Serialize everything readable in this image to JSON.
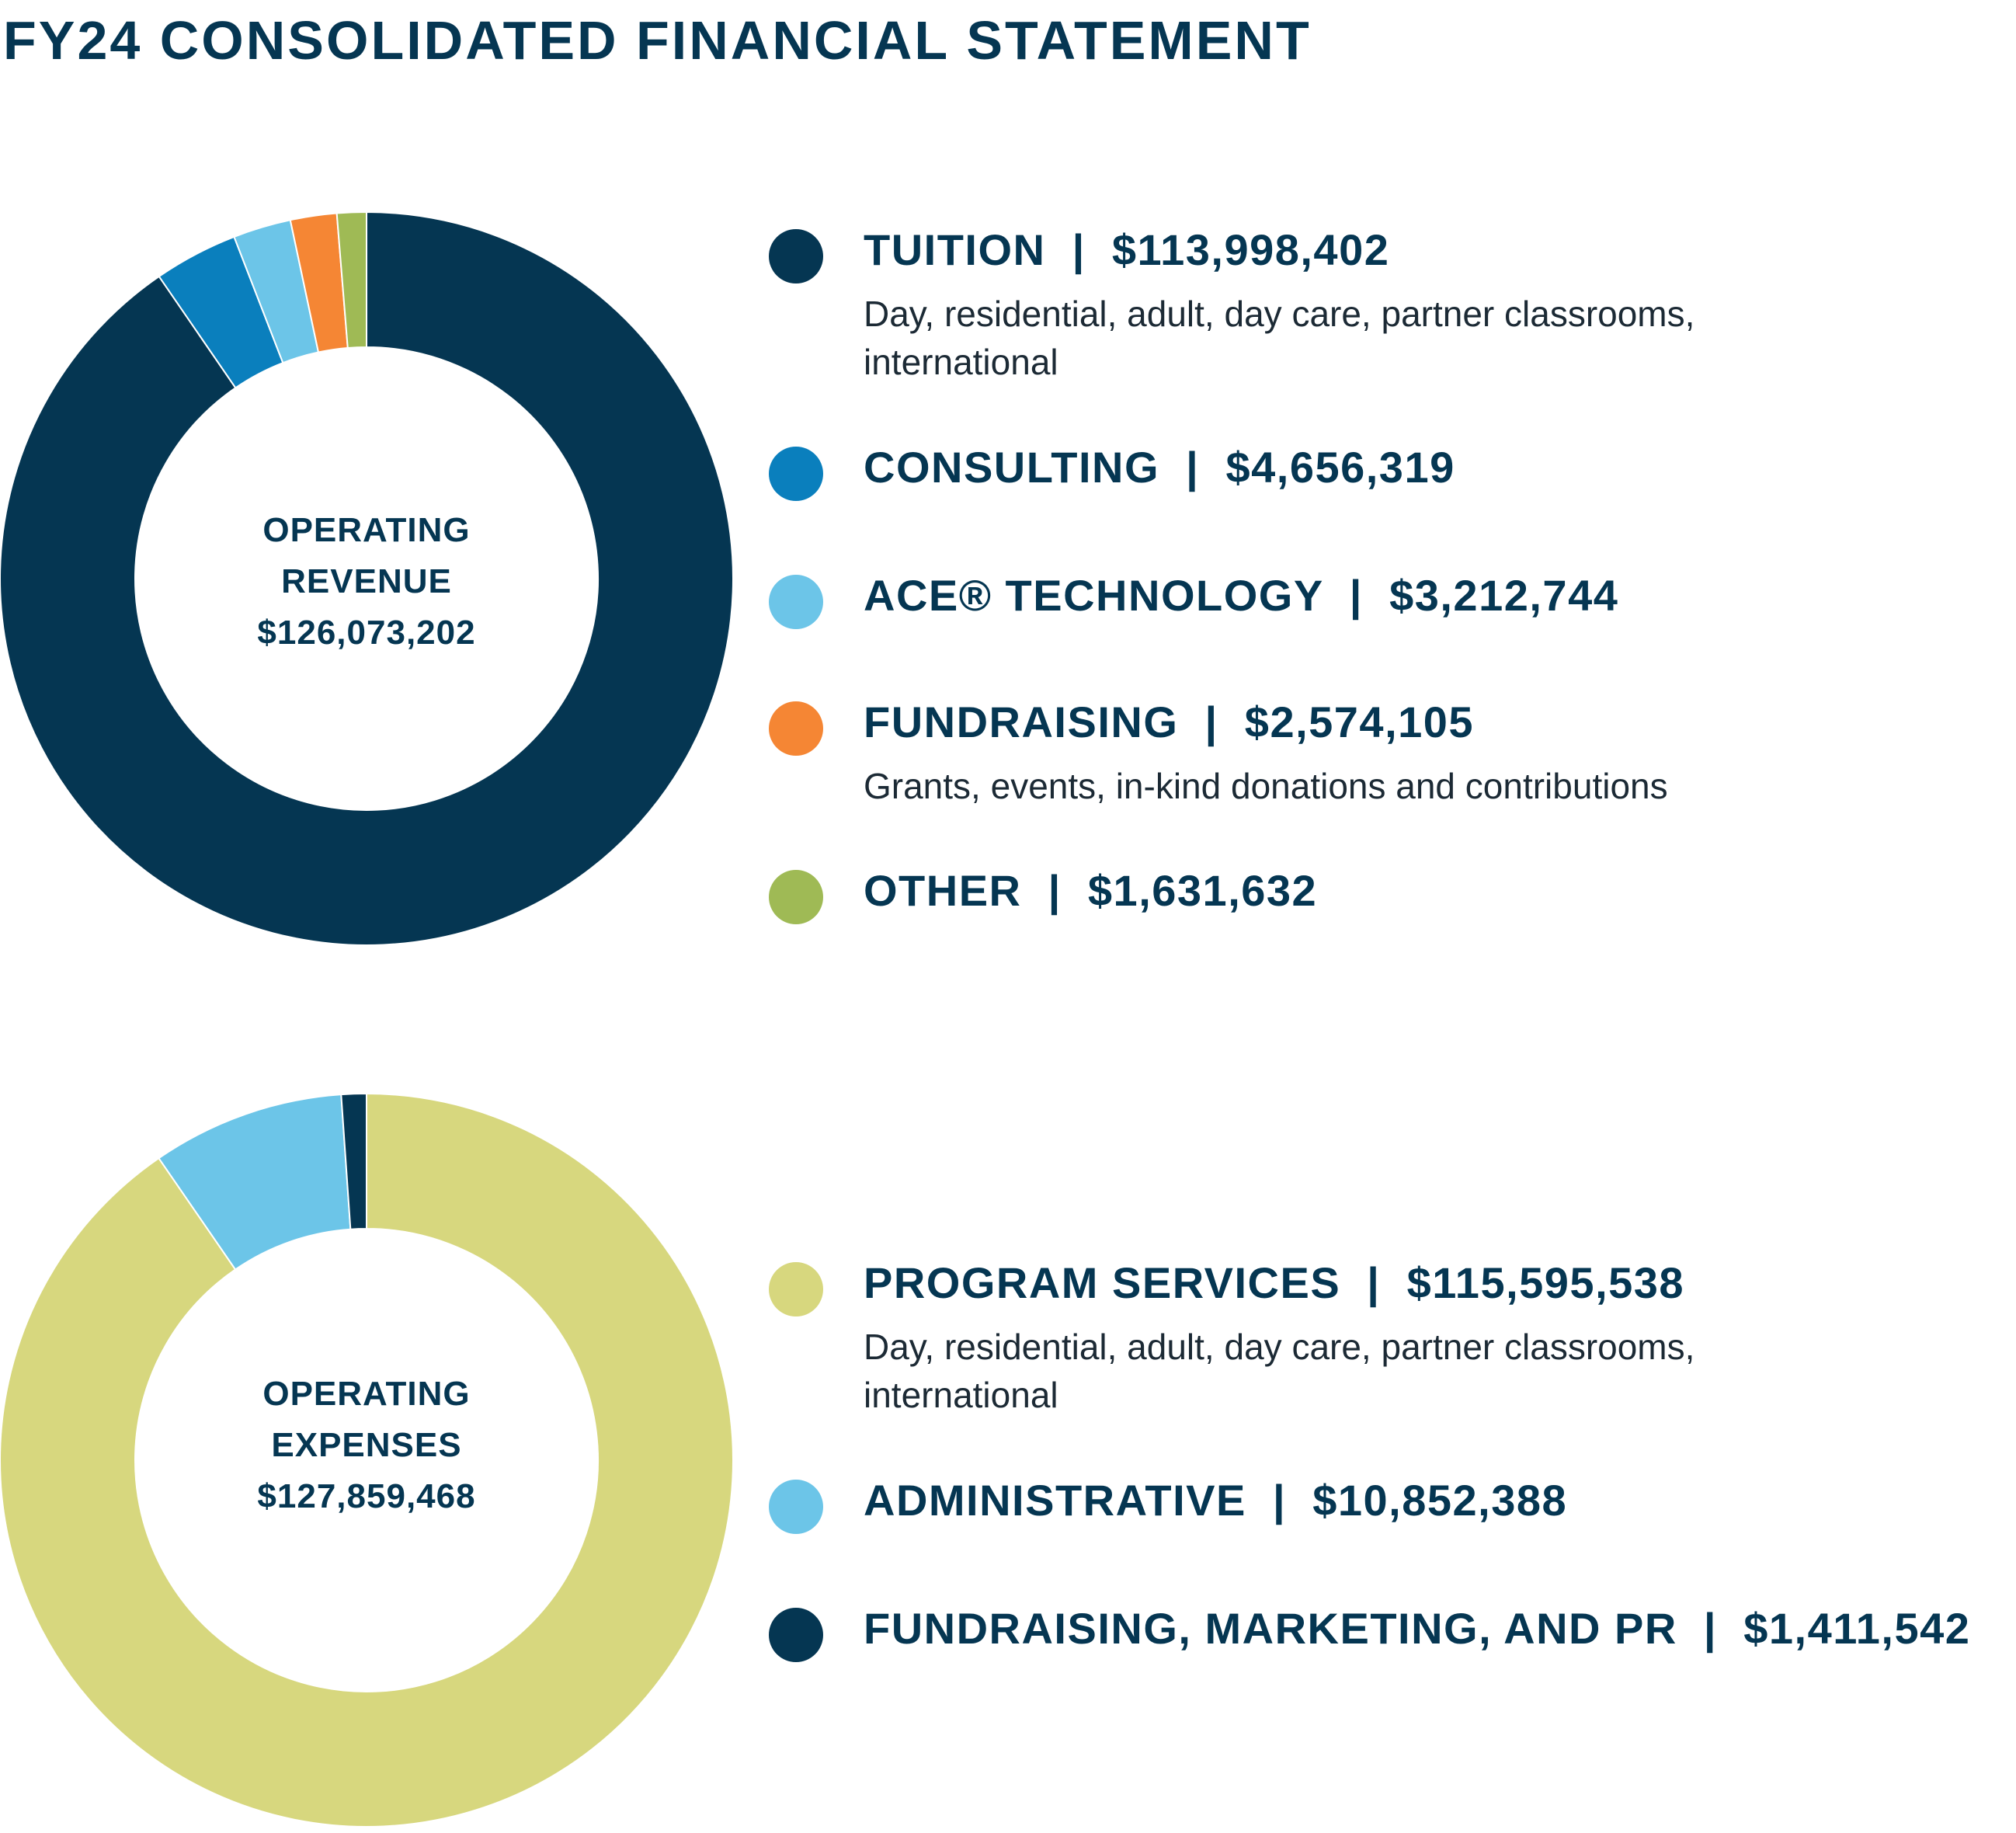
{
  "title": "FY24 CONSOLIDATED FINANCIAL STATEMENT",
  "chart_data": [
    {
      "type": "pie",
      "center_label": [
        "OPERATING",
        "REVENUE",
        "$126,073,202"
      ],
      "categories": [
        "TUITION",
        "CONSULTING",
        "ACE® TECHNOLOGY",
        "FUNDRAISING",
        "OTHER"
      ],
      "values": [
        113998402,
        4656319,
        3212744,
        2574105,
        1631632
      ],
      "value_labels": [
        "$113,998,402",
        "$4,656,319",
        "$3,212,744",
        "$2,574,105",
        "$1,631,632"
      ],
      "descriptions": [
        "Day, residential, adult, day care, partner classrooms, international",
        "",
        "",
        "Grants, events, in-kind donations and contributions",
        ""
      ],
      "colors": [
        "#053652",
        "#0a7fbd",
        "#6cc5e8",
        "#f58634",
        "#9fba55"
      ]
    },
    {
      "type": "pie",
      "center_label": [
        "OPERATING",
        "EXPENSES",
        "$127,859,468"
      ],
      "categories": [
        "PROGRAM SERVICES",
        "ADMINISTRATIVE",
        "FUNDRAISING, MARKETING, AND PR"
      ],
      "values": [
        115595538,
        10852388,
        1411542
      ],
      "value_labels": [
        "$115,595,538",
        "$10,852,388",
        "$1,411,542"
      ],
      "descriptions": [
        "Day, residential, adult, day care, partner classrooms, international",
        "",
        ""
      ],
      "colors": [
        "#d7d77e",
        "#6cc5e8",
        "#053652"
      ]
    }
  ]
}
